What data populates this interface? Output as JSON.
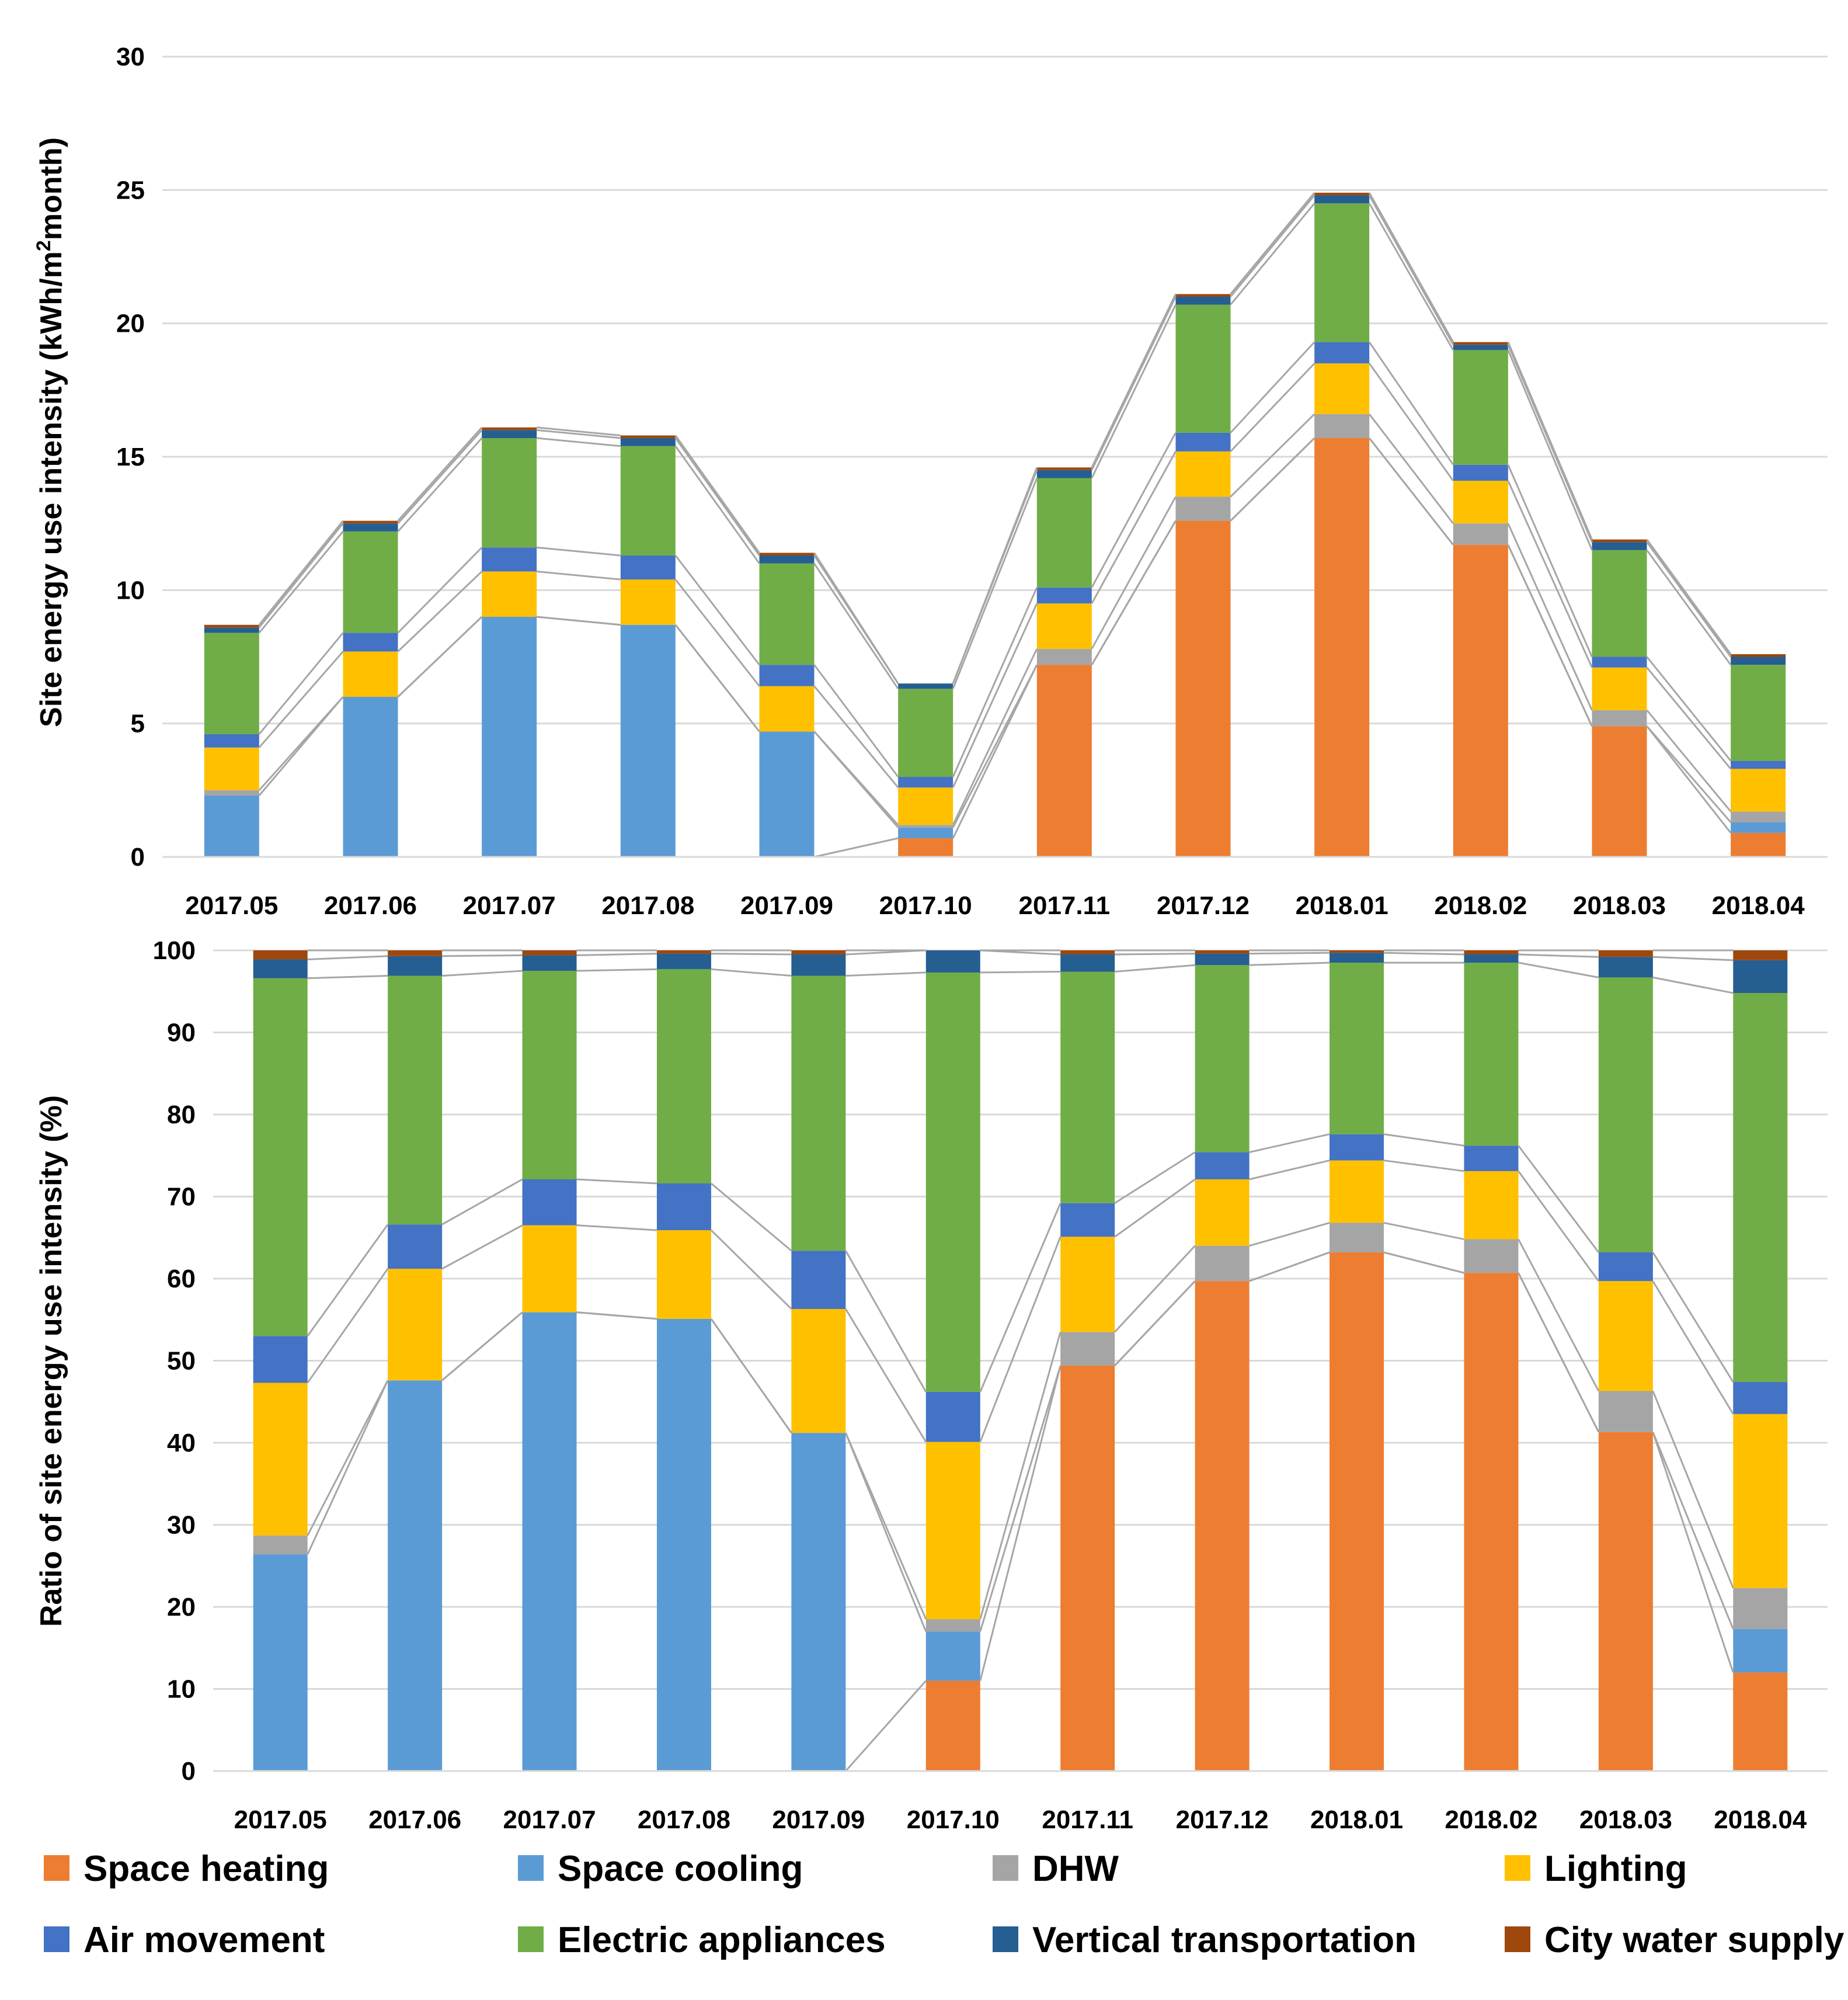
{
  "chart_data": [
    {
      "type": "bar",
      "stacked": true,
      "categories": [
        "2017.05",
        "2017.06",
        "2017.07",
        "2017.08",
        "2017.09",
        "2017.10",
        "2017.11",
        "2017.12",
        "2018.01",
        "2018.02",
        "2018.03",
        "2018.04"
      ],
      "ylabel_prefix": "Site energy use intensity (kWh/m",
      "ylabel_sup": "2",
      "ylabel_suffix": "month)",
      "ylim": [
        0,
        30
      ],
      "yticks": [
        "0",
        "5",
        "10",
        "15",
        "20",
        "25",
        "30"
      ],
      "grid": true,
      "series_lines": true,
      "series": [
        {
          "name": "Space heating",
          "values": [
            0,
            0,
            0,
            0,
            0,
            0.7,
            7.2,
            12.6,
            15.7,
            11.7,
            4.9,
            0.9
          ]
        },
        {
          "name": "Space cooling",
          "values": [
            2.3,
            6.0,
            9.0,
            8.7,
            4.7,
            0.4,
            0,
            0,
            0,
            0,
            0,
            0.4
          ]
        },
        {
          "name": "DHW",
          "values": [
            0.2,
            0,
            0,
            0,
            0,
            0.1,
            0.6,
            0.9,
            0.9,
            0.8,
            0.6,
            0.4
          ]
        },
        {
          "name": "Lighting",
          "values": [
            1.6,
            1.7,
            1.7,
            1.7,
            1.7,
            1.4,
            1.7,
            1.7,
            1.9,
            1.6,
            1.6,
            1.6
          ]
        },
        {
          "name": "Air movement",
          "values": [
            0.5,
            0.7,
            0.9,
            0.9,
            0.8,
            0.4,
            0.6,
            0.7,
            0.8,
            0.6,
            0.4,
            0.3
          ]
        },
        {
          "name": "Electric appliances",
          "values": [
            3.8,
            3.8,
            4.1,
            4.1,
            3.8,
            3.3,
            4.1,
            4.8,
            5.2,
            4.3,
            4.0,
            3.6
          ]
        },
        {
          "name": "Vertical transportation",
          "values": [
            0.2,
            0.3,
            0.3,
            0.3,
            0.3,
            0.2,
            0.3,
            0.3,
            0.3,
            0.2,
            0.3,
            0.3
          ]
        },
        {
          "name": "City water supply",
          "values": [
            0.1,
            0.1,
            0.1,
            0.1,
            0.1,
            0,
            0.1,
            0.1,
            0.1,
            0.1,
            0.1,
            0.1
          ]
        }
      ]
    },
    {
      "type": "bar",
      "stacked": true,
      "categories": [
        "2017.05",
        "2017.06",
        "2017.07",
        "2017.08",
        "2017.09",
        "2017.10",
        "2017.11",
        "2017.12",
        "2018.01",
        "2018.02",
        "2018.03",
        "2018.04"
      ],
      "ylabel": "Ratio of site energy use intensity (%)",
      "ylim": [
        0,
        100
      ],
      "yticks": [
        "0",
        "10",
        "20",
        "30",
        "40",
        "50",
        "60",
        "70",
        "80",
        "90",
        "100"
      ],
      "grid": true,
      "series_lines": true,
      "series": [
        {
          "name": "Space heating",
          "values": [
            0,
            0,
            0,
            0,
            0,
            11,
            49.4,
            59.7,
            63.2,
            60.7,
            41.3,
            12
          ]
        },
        {
          "name": "Space cooling",
          "values": [
            26.4,
            47.6,
            55.9,
            55.1,
            41.2,
            6,
            0,
            0,
            0,
            0,
            0,
            5.3
          ]
        },
        {
          "name": "DHW",
          "values": [
            2.3,
            0,
            0,
            0,
            0,
            1.5,
            4.1,
            4.3,
            3.6,
            4.1,
            5,
            5
          ]
        },
        {
          "name": "Lighting",
          "values": [
            18.6,
            13.6,
            10.6,
            10.8,
            15.1,
            21.6,
            11.6,
            8.1,
            7.6,
            8.3,
            13.4,
            21.2
          ]
        },
        {
          "name": "Air movement",
          "values": [
            5.7,
            5.4,
            5.6,
            5.7,
            7.1,
            6.1,
            4.1,
            3.3,
            3.2,
            3.1,
            3.5,
            3.9
          ]
        },
        {
          "name": "Electric appliances",
          "values": [
            43.6,
            30.3,
            25.4,
            26.1,
            33.5,
            51.1,
            28.2,
            22.8,
            20.9,
            22.3,
            33.5,
            47.4
          ]
        },
        {
          "name": "Vertical transportation",
          "values": [
            2.3,
            2.4,
            1.9,
            1.9,
            2.6,
            2.7,
            2.1,
            1.4,
            1.2,
            1,
            2.5,
            4
          ]
        },
        {
          "name": "City water supply",
          "values": [
            1.1,
            0.7,
            0.6,
            0.4,
            0.5,
            0,
            0.5,
            0.4,
            0.3,
            0.5,
            0.8,
            1.2
          ]
        }
      ]
    }
  ],
  "legend": {
    "items": [
      {
        "label": "Space heating",
        "color": "#ED7D31"
      },
      {
        "label": "Space cooling",
        "color": "#5B9BD5"
      },
      {
        "label": "DHW",
        "color": "#A5A5A5"
      },
      {
        "label": "Lighting",
        "color": "#FFC000"
      },
      {
        "label": "Air movement",
        "color": "#4472C4"
      },
      {
        "label": "Electric appliances",
        "color": "#70AD47"
      },
      {
        "label": "Vertical transportation",
        "color": "#255E91"
      },
      {
        "label": "City water supply",
        "color": "#9E480E"
      }
    ]
  }
}
